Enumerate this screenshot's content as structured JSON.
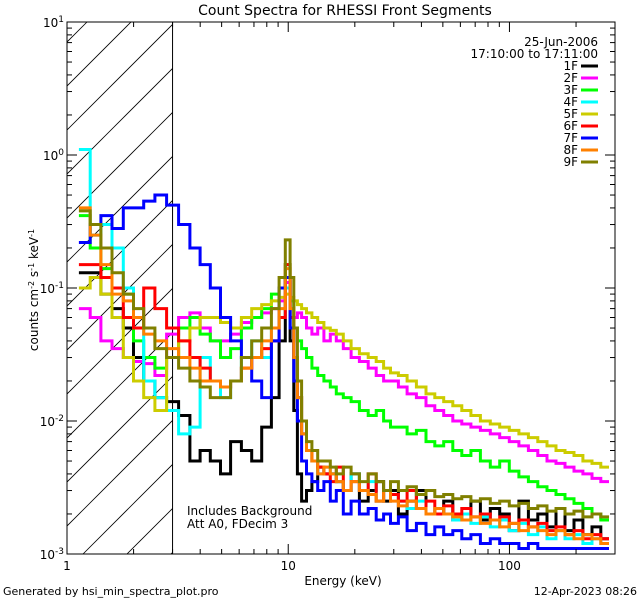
{
  "chart_data": {
    "type": "line",
    "title": "Count Spectra for RHESSI Front Segments",
    "xlabel": "Energy (keV)",
    "ylabel_base": "counts cm",
    "ylabel_exp1": "-2",
    "ylabel_mid": " s",
    "ylabel_exp2": "-1",
    "ylabel_end": " keV",
    "ylabel_exp3": "-1",
    "xscale": "log",
    "yscale": "log",
    "xlim": [
      1,
      300
    ],
    "ylim": [
      0.001,
      10
    ],
    "x_ticks": [
      {
        "value": 1,
        "label": "1"
      },
      {
        "value": 10,
        "label": "10"
      },
      {
        "value": 100,
        "label": "100"
      }
    ],
    "y_ticks": [
      {
        "value": 10,
        "base": "10",
        "exp": "1"
      },
      {
        "value": 1,
        "base": "10",
        "exp": "0"
      },
      {
        "value": 0.1,
        "base": "10",
        "exp": "-1"
      },
      {
        "value": 0.01,
        "base": "10",
        "exp": "-2"
      },
      {
        "value": 0.001,
        "base": "10",
        "exp": "-3"
      }
    ],
    "hatched_region": {
      "from": 1,
      "to": 3
    },
    "date": "25-Jun-2006",
    "time_range": "17:10:00 to 17:11:00",
    "annotation_line1": "Includes Background",
    "annotation_line2": "Att A0, FDecim 3",
    "footer_left": "Generated by hsi_min_spectra_plot.pro",
    "footer_right": "12-Apr-2023 08:26",
    "x": [
      1.2,
      1.35,
      1.5,
      1.7,
      1.9,
      2.1,
      2.35,
      2.65,
      3.0,
      3.4,
      3.8,
      4.2,
      4.7,
      5.2,
      5.8,
      6.5,
      7.2,
      8.0,
      8.8,
      9.4,
      10.0,
      10.4,
      10.8,
      11.2,
      11.8,
      12.4,
      13.2,
      14.0,
      15.0,
      16.0,
      17.0,
      18.5,
      20.0,
      22.0,
      24.0,
      26.0,
      28.0,
      30.0,
      33.0,
      36.0,
      40.0,
      44.0,
      48.0,
      53.0,
      58.0,
      64.0,
      70.0,
      78.0,
      86.0,
      95.0,
      105.0,
      116.0,
      128.0,
      141.0,
      155.0,
      170.0,
      187.0,
      205.0,
      225.0,
      248.0,
      270.0
    ],
    "series": [
      {
        "name": "1F",
        "color": "#000000",
        "values": [
          0.13,
          0.13,
          0.09,
          0.07,
          0.05,
          0.03,
          0.02,
          0.015,
          0.014,
          0.011,
          0.005,
          0.006,
          0.005,
          0.004,
          0.007,
          0.006,
          0.005,
          0.009,
          0.015,
          0.04,
          0.12,
          0.04,
          0.012,
          0.004,
          0.0025,
          0.003,
          0.0035,
          0.0045,
          0.004,
          0.004,
          0.0035,
          0.003,
          0.004,
          0.0025,
          0.003,
          0.0035,
          0.0025,
          0.003,
          0.002,
          0.0025,
          0.003,
          0.002,
          0.002,
          0.0025,
          0.0018,
          0.002,
          0.0025,
          0.0018,
          0.0022,
          0.002,
          0.0015,
          0.0025,
          0.0018,
          0.002,
          0.0016,
          0.0022,
          0.0015,
          0.0018,
          0.0014,
          0.0016,
          0.0013
        ]
      },
      {
        "name": "2F",
        "color": "#ff00ff",
        "values": [
          0.07,
          0.06,
          0.04,
          0.035,
          0.03,
          0.028,
          0.027,
          0.022,
          0.045,
          0.06,
          0.065,
          0.05,
          0.04,
          0.04,
          0.045,
          0.055,
          0.06,
          0.065,
          0.07,
          0.08,
          0.11,
          0.07,
          0.06,
          0.065,
          0.06,
          0.05,
          0.045,
          0.05,
          0.04,
          0.045,
          0.04,
          0.035,
          0.03,
          0.028,
          0.025,
          0.022,
          0.02,
          0.02,
          0.018,
          0.016,
          0.015,
          0.013,
          0.012,
          0.011,
          0.01,
          0.0095,
          0.009,
          0.0085,
          0.008,
          0.0075,
          0.007,
          0.0065,
          0.006,
          0.0055,
          0.005,
          0.0048,
          0.0045,
          0.0042,
          0.004,
          0.0037,
          0.0035
        ]
      },
      {
        "name": "3F",
        "color": "#00ff00",
        "values": [
          0.35,
          0.2,
          0.14,
          0.1,
          0.09,
          0.04,
          0.03,
          0.025,
          0.03,
          0.05,
          0.06,
          0.045,
          0.04,
          0.03,
          0.035,
          0.05,
          0.06,
          0.07,
          0.09,
          0.1,
          0.15,
          0.08,
          0.05,
          0.04,
          0.035,
          0.03,
          0.025,
          0.022,
          0.02,
          0.018,
          0.016,
          0.015,
          0.014,
          0.012,
          0.011,
          0.012,
          0.01,
          0.009,
          0.009,
          0.008,
          0.0085,
          0.007,
          0.0065,
          0.007,
          0.006,
          0.0055,
          0.006,
          0.005,
          0.0045,
          0.005,
          0.0042,
          0.0038,
          0.0035,
          0.0032,
          0.003,
          0.0028,
          0.0026,
          0.0024,
          0.0022,
          0.002,
          0.0018
        ]
      },
      {
        "name": "4F",
        "color": "#00ffff",
        "values": [
          1.1,
          0.25,
          0.3,
          0.2,
          0.1,
          0.05,
          0.02,
          0.015,
          0.012,
          0.008,
          0.009,
          0.03,
          0.02,
          0.015,
          0.02,
          0.03,
          0.04,
          0.03,
          0.05,
          0.06,
          0.1,
          0.05,
          0.03,
          0.015,
          0.008,
          0.006,
          0.005,
          0.004,
          0.0045,
          0.004,
          0.0035,
          0.003,
          0.004,
          0.003,
          0.0035,
          0.0025,
          0.003,
          0.0028,
          0.0025,
          0.0022,
          0.0025,
          0.002,
          0.0022,
          0.002,
          0.0018,
          0.002,
          0.0017,
          0.0019,
          0.0016,
          0.0018,
          0.0015,
          0.0017,
          0.0014,
          0.0016,
          0.0013,
          0.0015,
          0.0013,
          0.0014,
          0.0012,
          0.0013,
          0.0012
        ]
      },
      {
        "name": "5F",
        "color": "#cccc00",
        "values": [
          0.1,
          0.12,
          0.09,
          0.06,
          0.03,
          0.02,
          0.015,
          0.012,
          0.03,
          0.04,
          0.05,
          0.06,
          0.06,
          0.055,
          0.05,
          0.06,
          0.07,
          0.075,
          0.08,
          0.085,
          0.09,
          0.085,
          0.08,
          0.075,
          0.07,
          0.065,
          0.06,
          0.055,
          0.05,
          0.048,
          0.045,
          0.04,
          0.035,
          0.032,
          0.03,
          0.028,
          0.025,
          0.023,
          0.022,
          0.02,
          0.018,
          0.016,
          0.015,
          0.014,
          0.013,
          0.012,
          0.011,
          0.01,
          0.0095,
          0.009,
          0.0085,
          0.008,
          0.0075,
          0.007,
          0.0065,
          0.006,
          0.0058,
          0.0055,
          0.005,
          0.0048,
          0.0045
        ]
      },
      {
        "name": "6F",
        "color": "#ff0000",
        "values": [
          0.15,
          0.15,
          0.12,
          0.1,
          0.06,
          0.05,
          0.1,
          0.07,
          0.05,
          0.04,
          0.03,
          0.025,
          0.02,
          0.018,
          0.02,
          0.025,
          0.03,
          0.035,
          0.04,
          0.06,
          0.15,
          0.06,
          0.03,
          0.015,
          0.008,
          0.006,
          0.005,
          0.0045,
          0.004,
          0.0035,
          0.0045,
          0.003,
          0.0035,
          0.003,
          0.004,
          0.0025,
          0.003,
          0.0028,
          0.0025,
          0.003,
          0.0022,
          0.0025,
          0.002,
          0.0023,
          0.002,
          0.0022,
          0.0019,
          0.002,
          0.0018,
          0.0019,
          0.0017,
          0.0018,
          0.0016,
          0.0017,
          0.0015,
          0.0016,
          0.0014,
          0.0015,
          0.0013,
          0.0014,
          0.0013
        ]
      },
      {
        "name": "7F",
        "color": "#0000ff",
        "values": [
          0.22,
          0.3,
          0.35,
          0.28,
          0.4,
          0.4,
          0.45,
          0.5,
          0.42,
          0.3,
          0.2,
          0.15,
          0.1,
          0.06,
          0.04,
          0.03,
          0.02,
          0.015,
          0.04,
          0.1,
          0.12,
          0.05,
          0.02,
          0.01,
          0.005,
          0.004,
          0.0035,
          0.003,
          0.0035,
          0.0025,
          0.003,
          0.002,
          0.0025,
          0.002,
          0.0022,
          0.0018,
          0.002,
          0.0017,
          0.0019,
          0.0015,
          0.0017,
          0.0014,
          0.0016,
          0.0014,
          0.0015,
          0.0013,
          0.0014,
          0.0012,
          0.0013,
          0.0012,
          0.0012,
          0.0011,
          0.0012,
          0.0011,
          0.0011,
          0.0011,
          0.0011,
          0.0011,
          0.0011,
          0.0011,
          0.0011
        ]
      },
      {
        "name": "8F",
        "color": "#ff8000",
        "values": [
          0.4,
          0.25,
          0.15,
          0.09,
          0.08,
          0.06,
          0.045,
          0.04,
          0.035,
          0.03,
          0.025,
          0.02,
          0.02,
          0.018,
          0.02,
          0.025,
          0.03,
          0.04,
          0.05,
          0.07,
          0.14,
          0.07,
          0.03,
          0.015,
          0.008,
          0.006,
          0.005,
          0.004,
          0.0045,
          0.004,
          0.0035,
          0.003,
          0.0035,
          0.003,
          0.0028,
          0.0025,
          0.003,
          0.0025,
          0.0023,
          0.0025,
          0.0022,
          0.002,
          0.0022,
          0.002,
          0.0019,
          0.0018,
          0.0019,
          0.0017,
          0.0018,
          0.0016,
          0.0017,
          0.0015,
          0.0016,
          0.0015,
          0.0014,
          0.0015,
          0.0014,
          0.0013,
          0.0014,
          0.0013,
          0.0012
        ]
      },
      {
        "name": "9F",
        "color": "#808000",
        "values": [
          0.38,
          0.3,
          0.2,
          0.13,
          0.09,
          0.07,
          0.05,
          0.035,
          0.03,
          0.025,
          0.02,
          0.018,
          0.015,
          0.015,
          0.02,
          0.03,
          0.04,
          0.05,
          0.07,
          0.12,
          0.23,
          0.12,
          0.05,
          0.02,
          0.01,
          0.007,
          0.006,
          0.005,
          0.005,
          0.0045,
          0.004,
          0.0045,
          0.004,
          0.0035,
          0.004,
          0.0035,
          0.003,
          0.0035,
          0.003,
          0.0032,
          0.0028,
          0.003,
          0.0027,
          0.0028,
          0.0026,
          0.0027,
          0.0025,
          0.0026,
          0.0024,
          0.0025,
          0.0023,
          0.0024,
          0.0022,
          0.0023,
          0.0021,
          0.0022,
          0.002,
          0.0021,
          0.0019,
          0.002,
          0.0019
        ]
      }
    ]
  }
}
